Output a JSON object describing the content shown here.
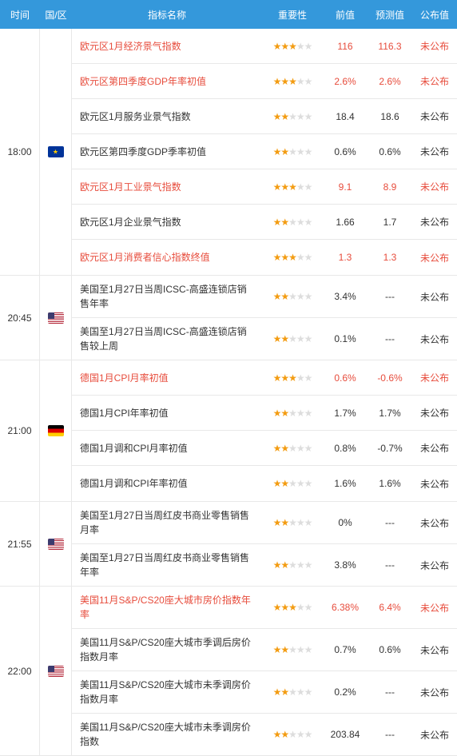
{
  "colors": {
    "header_bg": "#3498db",
    "highlight": "#e74c3c",
    "star_on": "#f39c12",
    "star_off": "#dddddd",
    "border": "#e8e8e8",
    "text": "#333333"
  },
  "header": {
    "time": "时间",
    "region": "国/区",
    "name": "指标名称",
    "importance": "重要性",
    "previous": "前值",
    "forecast": "预测值",
    "published": "公布值"
  },
  "groups": [
    {
      "time": "18:00",
      "flag": "eu",
      "rows": [
        {
          "name": "欧元区1月经济景气指数",
          "stars": 3,
          "prev": "116",
          "fore": "116.3",
          "pub": "未公布",
          "hl": true
        },
        {
          "name": "欧元区第四季度GDP年率初值",
          "stars": 3,
          "prev": "2.6%",
          "fore": "2.6%",
          "pub": "未公布",
          "hl": true
        },
        {
          "name": "欧元区1月服务业景气指数",
          "stars": 2,
          "prev": "18.4",
          "fore": "18.6",
          "pub": "未公布",
          "hl": false
        },
        {
          "name": "欧元区第四季度GDP季率初值",
          "stars": 2,
          "prev": "0.6%",
          "fore": "0.6%",
          "pub": "未公布",
          "hl": false
        },
        {
          "name": "欧元区1月工业景气指数",
          "stars": 3,
          "prev": "9.1",
          "fore": "8.9",
          "pub": "未公布",
          "hl": true
        },
        {
          "name": "欧元区1月企业景气指数",
          "stars": 2,
          "prev": "1.66",
          "fore": "1.7",
          "pub": "未公布",
          "hl": false
        },
        {
          "name": "欧元区1月消费者信心指数终值",
          "stars": 3,
          "prev": "1.3",
          "fore": "1.3",
          "pub": "未公布",
          "hl": true
        }
      ]
    },
    {
      "time": "20:45",
      "flag": "us",
      "rows": [
        {
          "name": "美国至1月27日当周ICSC-高盛连锁店销售年率",
          "stars": 2,
          "prev": "3.4%",
          "fore": "---",
          "pub": "未公布",
          "hl": false
        },
        {
          "name": "美国至1月27日当周ICSC-高盛连锁店销售较上周",
          "stars": 2,
          "prev": "0.1%",
          "fore": "---",
          "pub": "未公布",
          "hl": false
        }
      ]
    },
    {
      "time": "21:00",
      "flag": "de",
      "rows": [
        {
          "name": "德国1月CPI月率初值",
          "stars": 3,
          "prev": "0.6%",
          "fore": "-0.6%",
          "pub": "未公布",
          "hl": true
        },
        {
          "name": "德国1月CPI年率初值",
          "stars": 2,
          "prev": "1.7%",
          "fore": "1.7%",
          "pub": "未公布",
          "hl": false
        },
        {
          "name": "德国1月调和CPI月率初值",
          "stars": 2,
          "prev": "0.8%",
          "fore": "-0.7%",
          "pub": "未公布",
          "hl": false
        },
        {
          "name": "德国1月调和CPI年率初值",
          "stars": 2,
          "prev": "1.6%",
          "fore": "1.6%",
          "pub": "未公布",
          "hl": false
        }
      ]
    },
    {
      "time": "21:55",
      "flag": "us",
      "rows": [
        {
          "name": "美国至1月27日当周红皮书商业零售销售月率",
          "stars": 2,
          "prev": "0%",
          "fore": "---",
          "pub": "未公布",
          "hl": false
        },
        {
          "name": "美国至1月27日当周红皮书商业零售销售年率",
          "stars": 2,
          "prev": "3.8%",
          "fore": "---",
          "pub": "未公布",
          "hl": false
        }
      ]
    },
    {
      "time": "22:00",
      "flag": "us",
      "rows": [
        {
          "name": "美国11月S&P/CS20座大城市房价指数年率",
          "stars": 3,
          "prev": "6.38%",
          "fore": "6.4%",
          "pub": "未公布",
          "hl": true
        },
        {
          "name": "美国11月S&P/CS20座大城市季调后房价指数月率",
          "stars": 2,
          "prev": "0.7%",
          "fore": "0.6%",
          "pub": "未公布",
          "hl": false
        },
        {
          "name": "美国11月S&P/CS20座大城市未季调房价指数月率",
          "stars": 2,
          "prev": "0.2%",
          "fore": "---",
          "pub": "未公布",
          "hl": false
        },
        {
          "name": "美国11月S&P/CS20座大城市未季调房价指数",
          "stars": 2,
          "prev": "203.84",
          "fore": "---",
          "pub": "未公布",
          "hl": false
        }
      ]
    }
  ]
}
